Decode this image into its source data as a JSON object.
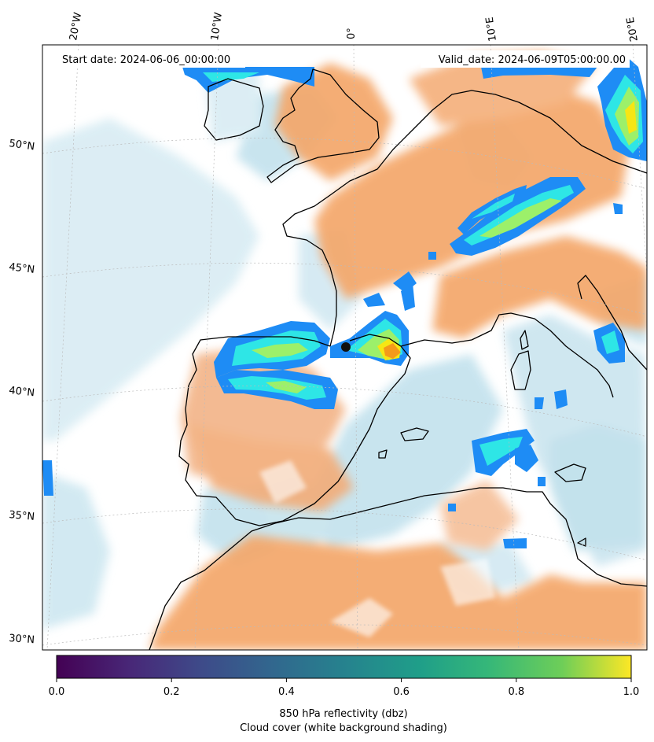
{
  "map": {
    "start_date": "Start date: 2024-06-06_00:00:00",
    "valid_date": "Valid_date: 2024-06-09T05:00:00.00",
    "lon_labels": [
      "20°W",
      "10°W",
      "0°",
      "10°E",
      "20°E"
    ],
    "lat_labels": [
      "50°N",
      "45°N",
      "40°N",
      "35°N",
      "30°N"
    ]
  },
  "colorbar": {
    "colormap": "viridis",
    "range": [
      0.0,
      1.0
    ],
    "ticks": [
      "0.0",
      "0.2",
      "0.4",
      "0.6",
      "0.8",
      "1.0"
    ],
    "label_line1": "850 hPa reflectivity (dbz)",
    "label_line2": "Cloud cover (white background shading)"
  },
  "colors": {
    "sea_cloud": "#bfe0ec",
    "land_warm": "#f4a76a",
    "reflectivity_blue": "#1e8cf5",
    "reflectivity_cyan": "#2ee6e6",
    "reflectivity_green": "#9cf06a",
    "reflectivity_yellow": "#f6e614",
    "reflectivity_orange": "#f49a1a"
  }
}
